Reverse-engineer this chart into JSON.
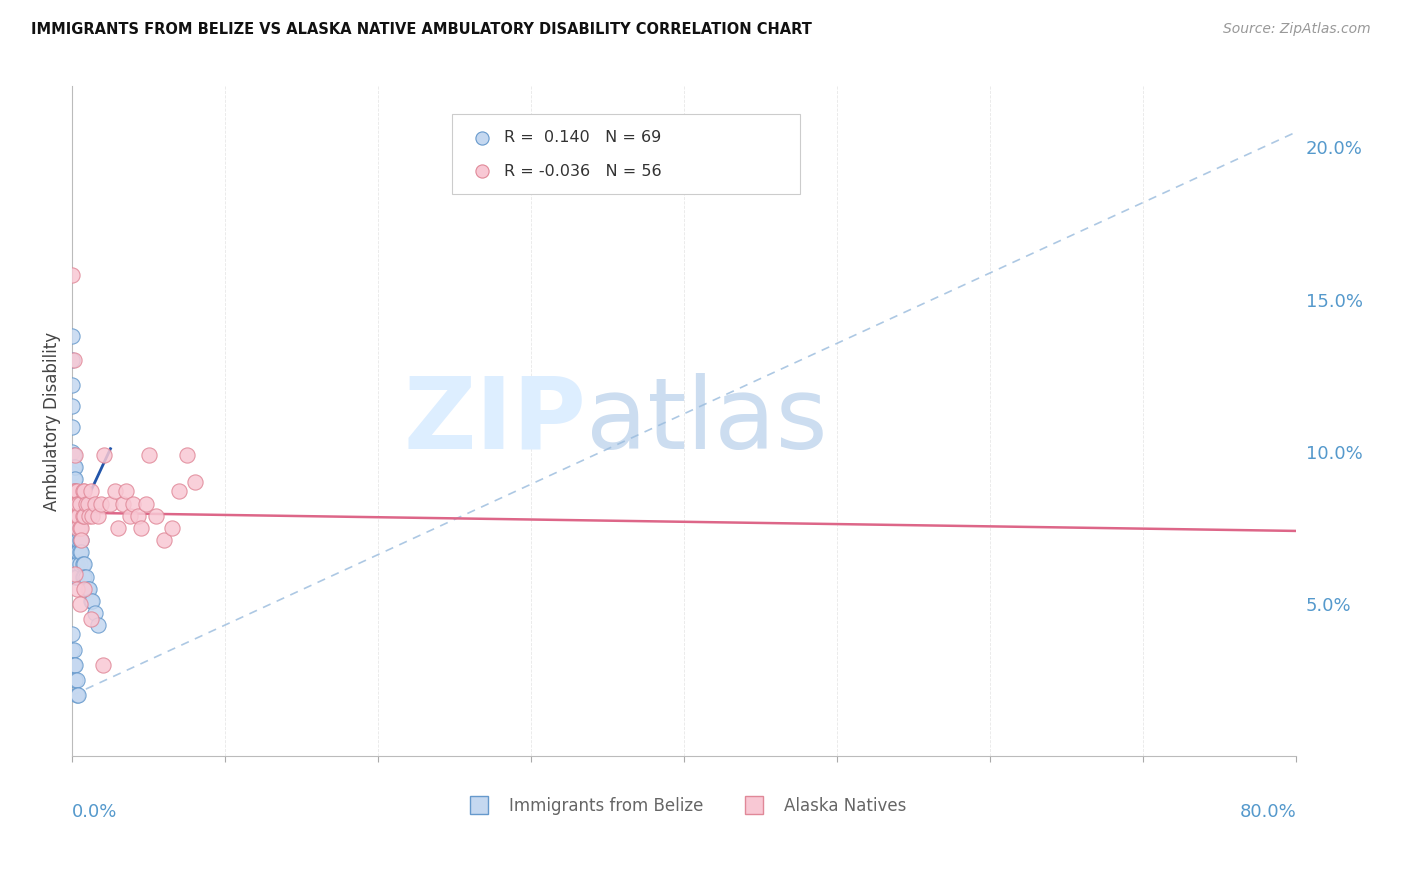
{
  "title": "IMMIGRANTS FROM BELIZE VS ALASKA NATIVE AMBULATORY DISABILITY CORRELATION CHART",
  "source": "Source: ZipAtlas.com",
  "ylabel": "Ambulatory Disability",
  "y_ticks_right": [
    0.05,
    0.1,
    0.15,
    0.2
  ],
  "y_tick_labels_right": [
    "5.0%",
    "10.0%",
    "15.0%",
    "20.0%"
  ],
  "xlim": [
    0.0,
    0.8
  ],
  "ylim": [
    0.0,
    0.22
  ],
  "r_blue": 0.14,
  "n_blue": 69,
  "r_pink": -0.036,
  "n_pink": 56,
  "blue_scatter_x": [
    0.0,
    0.0,
    0.0,
    0.0,
    0.0,
    0.0,
    0.0,
    0.0,
    0.0,
    0.0,
    0.001,
    0.001,
    0.001,
    0.001,
    0.001,
    0.001,
    0.001,
    0.001,
    0.001,
    0.001,
    0.001,
    0.001,
    0.002,
    0.002,
    0.002,
    0.002,
    0.002,
    0.002,
    0.002,
    0.002,
    0.002,
    0.002,
    0.003,
    0.003,
    0.003,
    0.003,
    0.003,
    0.003,
    0.003,
    0.004,
    0.004,
    0.004,
    0.004,
    0.005,
    0.005,
    0.005,
    0.005,
    0.006,
    0.006,
    0.007,
    0.007,
    0.008,
    0.008,
    0.009,
    0.01,
    0.011,
    0.012,
    0.013,
    0.015,
    0.017,
    0.0,
    0.0,
    0.001,
    0.001,
    0.002,
    0.002,
    0.003,
    0.003,
    0.004
  ],
  "blue_scatter_y": [
    0.138,
    0.13,
    0.122,
    0.115,
    0.108,
    0.1,
    0.093,
    0.087,
    0.082,
    0.077,
    0.072,
    0.068,
    0.064,
    0.099,
    0.095,
    0.091,
    0.087,
    0.083,
    0.079,
    0.075,
    0.071,
    0.067,
    0.095,
    0.091,
    0.087,
    0.083,
    0.079,
    0.075,
    0.071,
    0.067,
    0.063,
    0.059,
    0.083,
    0.079,
    0.075,
    0.071,
    0.067,
    0.063,
    0.059,
    0.079,
    0.075,
    0.071,
    0.067,
    0.075,
    0.071,
    0.067,
    0.063,
    0.071,
    0.067,
    0.063,
    0.059,
    0.063,
    0.059,
    0.059,
    0.055,
    0.055,
    0.051,
    0.051,
    0.047,
    0.043,
    0.04,
    0.035,
    0.035,
    0.03,
    0.03,
    0.025,
    0.025,
    0.02,
    0.02
  ],
  "pink_scatter_x": [
    0.0,
    0.0,
    0.001,
    0.001,
    0.001,
    0.001,
    0.002,
    0.002,
    0.002,
    0.002,
    0.003,
    0.003,
    0.003,
    0.003,
    0.004,
    0.004,
    0.005,
    0.005,
    0.006,
    0.006,
    0.007,
    0.007,
    0.008,
    0.008,
    0.009,
    0.01,
    0.011,
    0.012,
    0.013,
    0.015,
    0.017,
    0.019,
    0.021,
    0.025,
    0.028,
    0.03,
    0.033,
    0.035,
    0.038,
    0.04,
    0.043,
    0.045,
    0.048,
    0.05,
    0.055,
    0.06,
    0.065,
    0.07,
    0.075,
    0.08,
    0.002,
    0.003,
    0.005,
    0.008,
    0.012,
    0.02
  ],
  "pink_scatter_y": [
    0.158,
    0.082,
    0.13,
    0.087,
    0.083,
    0.079,
    0.099,
    0.087,
    0.083,
    0.079,
    0.087,
    0.083,
    0.079,
    0.075,
    0.083,
    0.079,
    0.083,
    0.075,
    0.075,
    0.071,
    0.087,
    0.079,
    0.087,
    0.079,
    0.083,
    0.083,
    0.079,
    0.087,
    0.079,
    0.083,
    0.079,
    0.083,
    0.099,
    0.083,
    0.087,
    0.075,
    0.083,
    0.087,
    0.079,
    0.083,
    0.079,
    0.075,
    0.083,
    0.099,
    0.079,
    0.071,
    0.075,
    0.087,
    0.099,
    0.09,
    0.06,
    0.055,
    0.05,
    0.055,
    0.045,
    0.03
  ],
  "blue_color": "#c5d8f0",
  "blue_edge_color": "#6699cc",
  "pink_color": "#f8c8d4",
  "pink_edge_color": "#e08898",
  "trend_blue_solid_color": "#2255aa",
  "trend_blue_dash_color": "#99bbdd",
  "trend_pink_color": "#dd6688",
  "grid_color": "#e8e8e8",
  "right_axis_color": "#5599cc",
  "background_color": "#ffffff"
}
